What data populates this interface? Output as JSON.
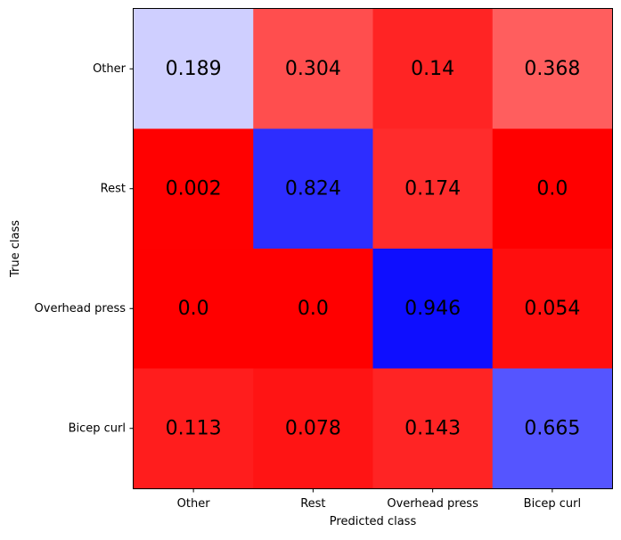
{
  "chart_data": {
    "type": "heatmap",
    "title": "",
    "xlabel": "Predicted class",
    "ylabel": "True class",
    "x_categories": [
      "Other",
      "Rest",
      "Overhead press",
      "Bicep curl"
    ],
    "y_categories": [
      "Other",
      "Rest",
      "Overhead press",
      "Bicep curl"
    ],
    "values": [
      [
        0.189,
        0.304,
        0.14,
        0.368
      ],
      [
        0.002,
        0.824,
        0.174,
        0.0
      ],
      [
        0.0,
        0.0,
        0.946,
        0.054
      ],
      [
        0.113,
        0.078,
        0.143,
        0.665
      ]
    ],
    "value_labels": [
      [
        "0.189",
        "0.304",
        "0.14",
        "0.368"
      ],
      [
        "0.002",
        "0.824",
        "0.174",
        "0.0"
      ],
      [
        "0.0",
        "0.0",
        "0.946",
        "0.054"
      ],
      [
        "0.113",
        "0.078",
        "0.143",
        "0.665"
      ]
    ],
    "colormap": {
      "diagonal": {
        "low": "#ffffff",
        "high": "#0000ff"
      },
      "off_diagonal": {
        "low": "#ff0000",
        "high": "#ffffff"
      },
      "range": [
        0,
        1
      ]
    },
    "grid": false,
    "legend": "none"
  }
}
